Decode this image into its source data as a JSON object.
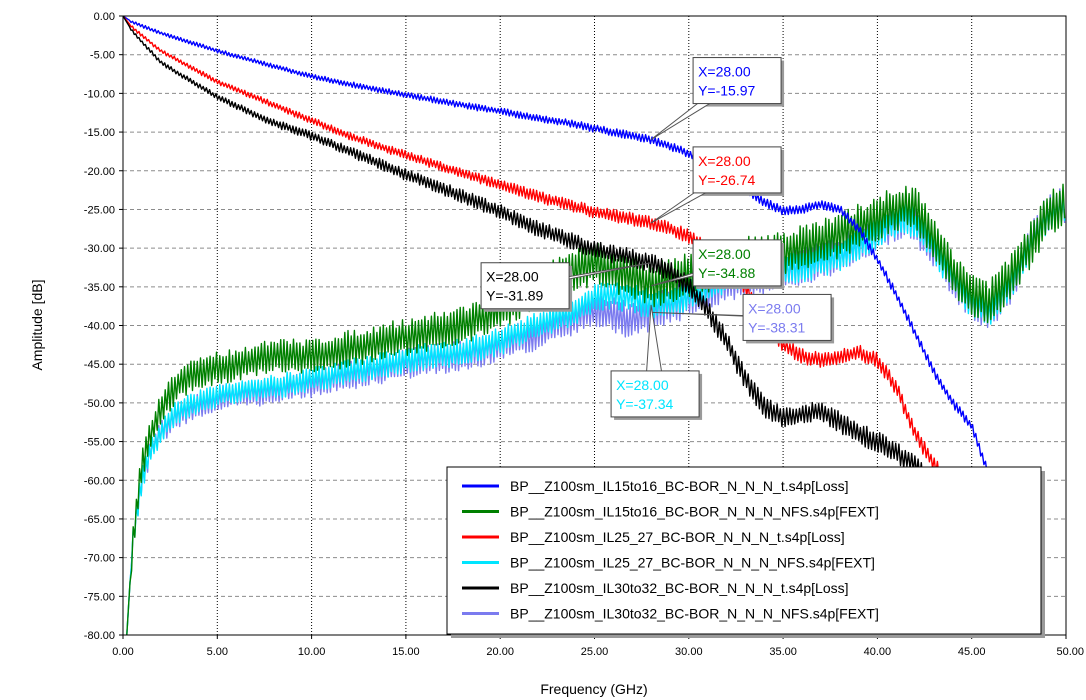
{
  "chart_data": {
    "type": "line",
    "title": "",
    "xlabel": "Frequency (GHz)",
    "ylabel": "Amplitude [dB]",
    "xlim": [
      0,
      50
    ],
    "ylim": [
      -80,
      0
    ],
    "x_ticks": [
      "0.00",
      "5.00",
      "10.00",
      "15.00",
      "20.00",
      "25.00",
      "30.00",
      "35.00",
      "40.00",
      "45.00",
      "50.00"
    ],
    "y_ticks": [
      "0.00",
      "-5.00",
      "-10.00",
      "-15.00",
      "-20.00",
      "-25.00",
      "-30.00",
      "-35.00",
      "-40.00",
      "-45.00",
      "-50.00",
      "-55.00",
      "-60.00",
      "-65.00",
      "-70.00",
      "-75.00",
      "-80.00"
    ],
    "grid": true,
    "legend_position": "bottom-right",
    "series": [
      {
        "name": "BP__Z100sm_IL15to16_BC-BOR_N_N_N_t.s4p[Loss]",
        "color": "#0000ff",
        "ripple": [
          0.2,
          0.6
        ],
        "x": [
          0,
          0.5,
          2,
          5,
          8,
          10,
          12,
          15,
          18,
          20,
          22,
          24,
          25,
          26,
          27,
          28,
          29,
          30,
          31,
          32,
          33,
          34,
          35,
          36,
          37,
          38,
          39,
          40,
          41,
          42,
          43,
          44,
          45,
          46,
          47,
          48
        ],
        "y": [
          0,
          -0.8,
          -2.2,
          -4.5,
          -6.5,
          -7.8,
          -8.8,
          -10.2,
          -11.5,
          -12.3,
          -13.2,
          -14.0,
          -14.5,
          -15.0,
          -15.5,
          -15.97,
          -16.8,
          -17.8,
          -19.0,
          -20.5,
          -22.5,
          -24.0,
          -25.2,
          -25.0,
          -24.3,
          -25.0,
          -27.5,
          -31.5,
          -36.0,
          -41.0,
          -46.0,
          -50.0,
          -53.0,
          -60.0,
          -70.0,
          -80.0
        ]
      },
      {
        "name": "BP__Z100sm_IL15to16_BC-BOR_N_N_N_NFS.s4p[FEXT]",
        "color": "#008000",
        "ripple": [
          2.0,
          3.0
        ],
        "x": [
          0.2,
          0.5,
          1,
          1.5,
          2,
          2.5,
          3,
          4,
          5,
          6,
          8,
          10,
          12,
          14,
          16,
          18,
          20,
          22,
          23,
          24,
          25,
          26,
          27,
          28,
          30,
          32,
          34,
          36,
          38,
          40,
          41,
          41.5,
          42,
          43,
          44,
          45,
          46,
          47,
          48,
          49,
          50
        ],
        "y": [
          -80,
          -68,
          -58,
          -54,
          -51,
          -49,
          -47.5,
          -46,
          -45.5,
          -45,
          -44,
          -44,
          -43,
          -42,
          -41,
          -40,
          -38,
          -35,
          -34,
          -33,
          -32,
          -33,
          -33.5,
          -34.88,
          -33.5,
          -32,
          -31,
          -30,
          -28.5,
          -26,
          -25,
          -24.5,
          -25,
          -29,
          -33,
          -36,
          -37,
          -34,
          -30,
          -26,
          -24
        ]
      },
      {
        "name": "BP__Z100sm_IL25_27_BC-BOR_N_N_N_t.s4p[Loss]",
        "color": "#ff0000",
        "ripple": [
          0.2,
          1.0
        ],
        "x": [
          0,
          0.5,
          2,
          5,
          8,
          10,
          12,
          15,
          18,
          20,
          22,
          24,
          25,
          26,
          27,
          28,
          29,
          30,
          31,
          32,
          33,
          34,
          35,
          36,
          37,
          38,
          39,
          40,
          41,
          42,
          43,
          44,
          45,
          46
        ],
        "y": [
          0,
          -1.5,
          -4.5,
          -8.5,
          -11.5,
          -13.5,
          -15.5,
          -18.0,
          -20.3,
          -21.8,
          -23.3,
          -24.7,
          -25.3,
          -25.8,
          -26.3,
          -26.74,
          -27.5,
          -28.5,
          -30.0,
          -32.0,
          -35.0,
          -39.0,
          -42.5,
          -44.0,
          -44.5,
          -44.0,
          -43.5,
          -44.5,
          -48.0,
          -54.0,
          -58.0,
          -61.0,
          -68.0,
          -80.0
        ]
      },
      {
        "name": "BP__Z100sm_IL25_27_BC-BOR_N_N_N_NFS.s4p[FEXT]",
        "color": "#00e5ff",
        "ripple": [
          1.5,
          2.0
        ],
        "x": [
          0.2,
          0.5,
          1,
          1.5,
          2,
          2.5,
          3,
          4,
          5,
          6,
          8,
          10,
          12,
          14,
          16,
          18,
          20,
          22,
          24,
          25,
          26,
          27,
          28,
          29,
          30,
          32,
          34,
          36,
          38,
          40,
          41,
          41.5,
          42,
          43,
          44,
          45,
          46,
          47,
          48,
          49,
          50
        ],
        "y": [
          -80,
          -68,
          -60,
          -56,
          -54,
          -52,
          -51,
          -50,
          -49,
          -48.5,
          -48,
          -47,
          -46,
          -45,
          -44,
          -43.5,
          -42,
          -40,
          -38,
          -36.5,
          -36,
          -36.5,
          -37.34,
          -37,
          -36,
          -34,
          -33,
          -32.5,
          -31,
          -28,
          -26.5,
          -26,
          -27,
          -30,
          -34,
          -37,
          -38,
          -35,
          -30,
          -26,
          -24.5
        ]
      },
      {
        "name": "BP__Z100sm_IL30to32_BC-BOR_N_N_N_t.s4p[Loss]",
        "color": "#000000",
        "ripple": [
          0.2,
          1.4
        ],
        "x": [
          0,
          0.5,
          2,
          5,
          8,
          10,
          12,
          15,
          18,
          20,
          22,
          24,
          25,
          26,
          27,
          28,
          29,
          30,
          31,
          32,
          33,
          34,
          35,
          36,
          37,
          38,
          39,
          40,
          41,
          42,
          43,
          44,
          45
        ],
        "y": [
          0,
          -2.0,
          -6.0,
          -10.5,
          -13.8,
          -15.5,
          -17.5,
          -20.5,
          -23.3,
          -25.3,
          -27.5,
          -29.3,
          -30.2,
          -30.8,
          -31.3,
          -31.89,
          -33.0,
          -35.0,
          -38.0,
          -42.0,
          -47.0,
          -50.5,
          -52.0,
          -51.5,
          -51.0,
          -52.5,
          -54.0,
          -55.0,
          -56.5,
          -58.0,
          -61.0,
          -70.0,
          -80.0
        ]
      },
      {
        "name": "BP__Z100sm_IL30to32_BC-BOR_N_N_N_NFS.s4p[FEXT]",
        "color": "#7b7bef",
        "ripple": [
          1.5,
          2.5
        ],
        "x": [
          0.2,
          0.5,
          1,
          1.5,
          2,
          2.5,
          3,
          4,
          5,
          6,
          8,
          10,
          12,
          14,
          16,
          18,
          20,
          22,
          24,
          25,
          26,
          27,
          28,
          29,
          30,
          32,
          34,
          36,
          38,
          40,
          41,
          41.5,
          42,
          43,
          44,
          45,
          46,
          47,
          48,
          49,
          50
        ],
        "y": [
          -80,
          -68,
          -60,
          -56,
          -54,
          -52.5,
          -51.5,
          -50.5,
          -49.5,
          -49,
          -48.5,
          -47.5,
          -46.5,
          -45.5,
          -44.5,
          -44,
          -42.5,
          -41,
          -39,
          -38,
          -38.5,
          -39.5,
          -38.31,
          -37.5,
          -36.5,
          -34.5,
          -33.5,
          -32.5,
          -31,
          -28,
          -26.5,
          -26,
          -27,
          -30,
          -34,
          -37,
          -38,
          -35,
          -30,
          -25.5,
          -24.5
        ]
      }
    ],
    "markers": [
      {
        "x_text": "X=28.00",
        "y_text": "Y=-15.97",
        "color": "#0000ff",
        "x": 28,
        "y": -15.97
      },
      {
        "x_text": "X=28.00",
        "y_text": "Y=-26.74",
        "color": "#ff0000",
        "x": 28,
        "y": -26.74
      },
      {
        "x_text": "X=28.00",
        "y_text": "Y=-34.88",
        "color": "#008000",
        "x": 28,
        "y": -34.88
      },
      {
        "x_text": "X=28.00",
        "y_text": "Y=-31.89",
        "color": "#000000",
        "x": 28,
        "y": -31.89
      },
      {
        "x_text": "X=28.00",
        "y_text": "Y=-38.31",
        "color": "#7b7bef",
        "x": 28,
        "y": -38.31
      },
      {
        "x_text": "X=28.00",
        "y_text": "Y=-37.34",
        "color": "#00e5ff",
        "x": 28,
        "y": -37.34
      }
    ]
  }
}
